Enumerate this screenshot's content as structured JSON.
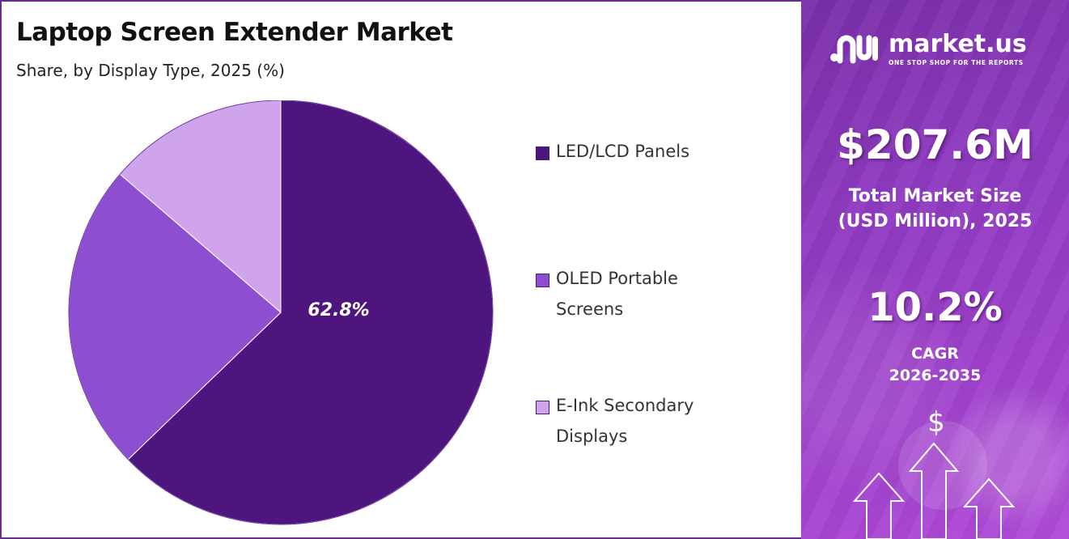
{
  "header": {
    "title": "Laptop Screen Extender Market",
    "subtitle": "Share, by Display Type, 2025 (%)"
  },
  "chart_data": {
    "type": "pie",
    "categories": [
      "LED/LCD Panels",
      "OLED Portable Screens",
      "E-Ink Secondary Displays"
    ],
    "values": [
      62.8,
      23.5,
      13.7
    ],
    "colors": [
      "#4e157e",
      "#8d4fd0",
      "#cfa4ec"
    ],
    "data_labels": [
      "62.8%",
      "",
      ""
    ],
    "legend_placement": "right",
    "start_angle_deg": 0,
    "direction": "clockwise"
  },
  "legend": [
    {
      "label": "LED/LCD Panels",
      "lines": [
        "LED/LCD Panels"
      ]
    },
    {
      "label": "OLED Portable Screens",
      "lines": [
        "OLED Portable",
        "Screens"
      ]
    },
    {
      "label": "E-Ink Secondary Displays",
      "lines": [
        "E-Ink Secondary",
        "Displays"
      ]
    }
  ],
  "sidebar": {
    "brand_name": "market.us",
    "brand_tagline": "ONE STOP SHOP FOR THE REPORTS",
    "market_size_value": "$207.6M",
    "market_size_label_1": "Total Market Size",
    "market_size_label_2": "(USD Million), 2025",
    "cagr_value": "10.2%",
    "cagr_label_1": "CAGR",
    "cagr_label_2": "2026-2035",
    "dollar_symbol": "$",
    "icons": [
      "brand-logo-icon",
      "dollar-icon",
      "up-arrow-icon"
    ]
  },
  "colors": {
    "border": "#6b2c91",
    "panel_accent": "#8e3bc0",
    "title_text": "#111111"
  }
}
